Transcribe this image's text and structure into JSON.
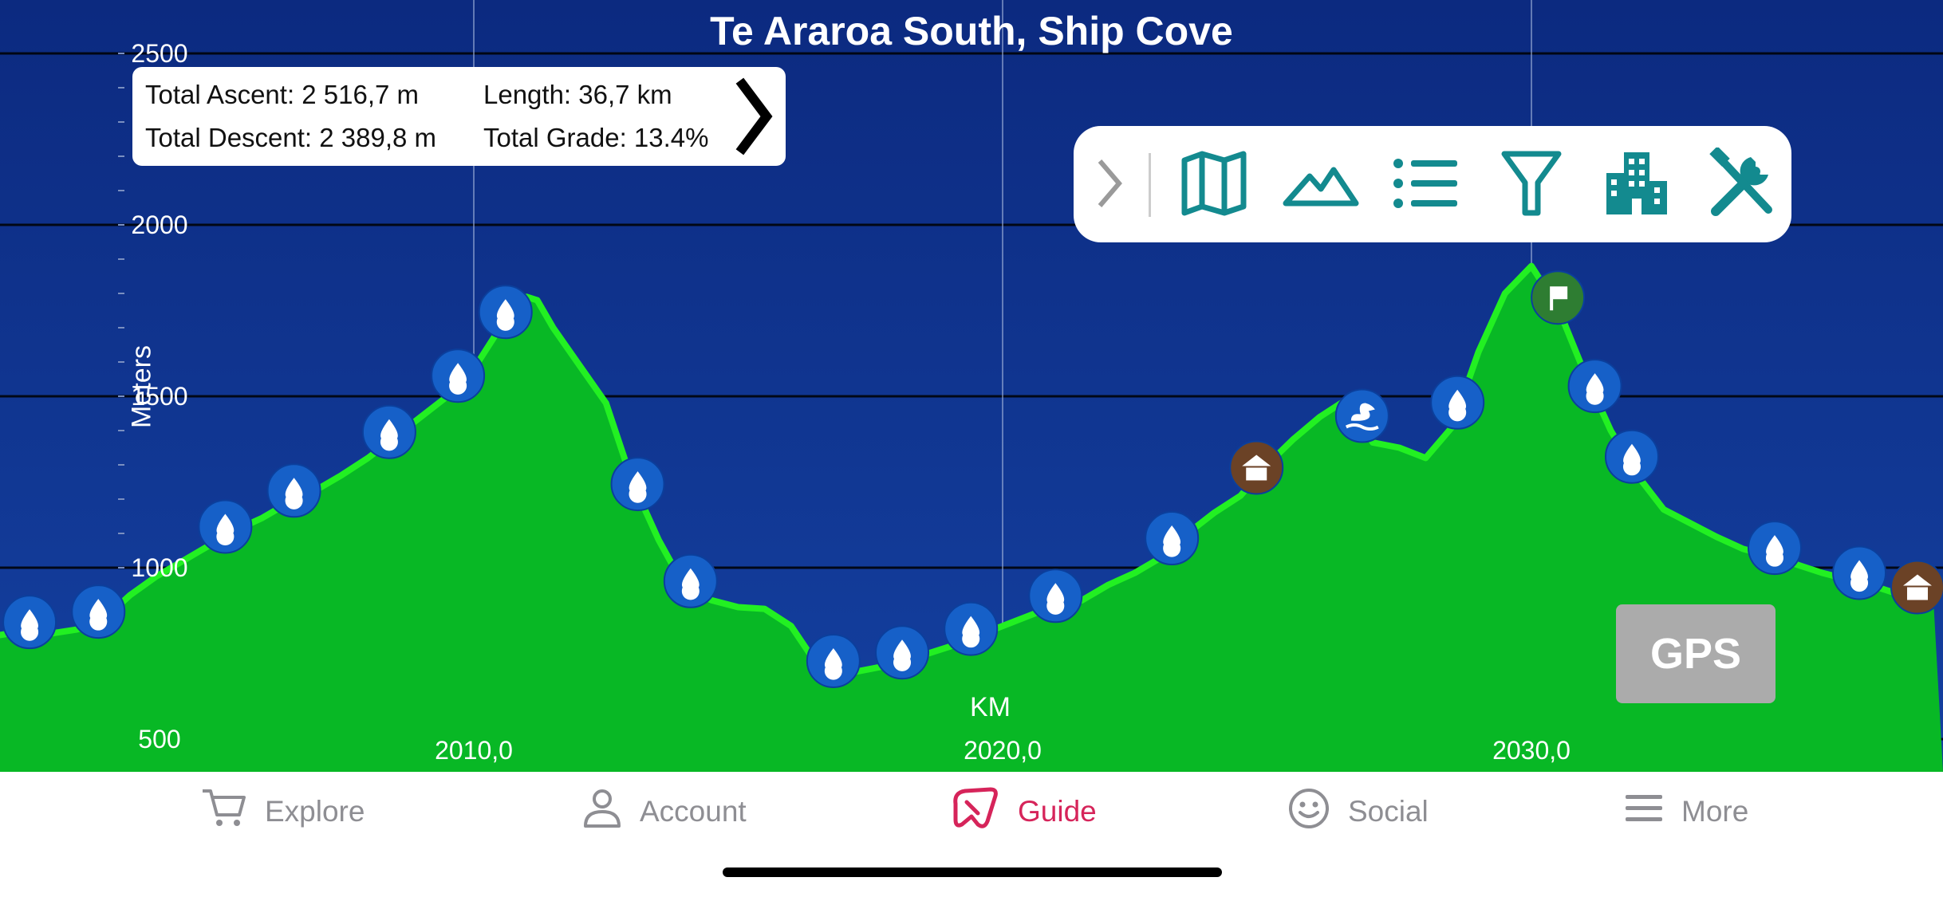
{
  "title": "Te Araroa South, Ship Cove",
  "stats": {
    "total_ascent": "Total Ascent: 2 516,7 m",
    "length": "Length: 36,7 km",
    "total_descent": "Total Descent: 2 389,8 m",
    "total_grade": "Total Grade: 13.4%"
  },
  "toolbar": {
    "icons": [
      "chevron-right-icon",
      "map-icon",
      "mountain-icon",
      "list-icon",
      "filter-icon",
      "building-icon",
      "tools-icon"
    ]
  },
  "gps_label": "GPS",
  "tabs": [
    {
      "label": "Explore",
      "icon": "cart-icon"
    },
    {
      "label": "Account",
      "icon": "person-icon"
    },
    {
      "label": "Guide",
      "icon": "guide-arrow-icon",
      "active": true
    },
    {
      "label": "Social",
      "icon": "smiley-icon"
    },
    {
      "label": "More",
      "icon": "menu-icon"
    }
  ],
  "colors": {
    "background": "#0f2d84",
    "fill": "#08b825",
    "line": "#22f022",
    "water_marker": "#1660c8",
    "hut_marker": "#6b4226",
    "flag_marker": "#2e7d32",
    "active_tab": "#d6245a"
  },
  "chart_data": {
    "type": "area",
    "title": "Te Araroa South, Ship Cove",
    "xlabel": "KM",
    "ylabel": "Meters",
    "xlim": [
      2000.9,
      2037.6
    ],
    "ylim": [
      450,
      2600
    ],
    "x_ticks": [
      "2010,0",
      "2020,0",
      "2030,0"
    ],
    "x_tick_values": [
      2010,
      2020,
      2030
    ],
    "y_ticks": [
      "500",
      "1000",
      "1500",
      "2000",
      "2500"
    ],
    "y_tick_values": [
      500,
      1000,
      1500,
      2000,
      2500
    ],
    "grid": true,
    "x": [
      2000.9,
      2001.5,
      2002.0,
      2002.5,
      2003.0,
      2003.5,
      2004.0,
      2004.5,
      2005.0,
      2005.5,
      2006.0,
      2006.5,
      2007.0,
      2007.5,
      2008.0,
      2008.5,
      2009.0,
      2009.5,
      2010.0,
      2010.5,
      2011.0,
      2011.2,
      2011.5,
      2012.0,
      2012.5,
      2013.0,
      2013.5,
      2014.0,
      2014.5,
      2015.0,
      2015.5,
      2016.0,
      2016.5,
      2017.0,
      2017.5,
      2018.0,
      2018.5,
      2019.0,
      2019.5,
      2020.0,
      2020.5,
      2021.0,
      2021.5,
      2022.0,
      2022.5,
      2023.0,
      2023.5,
      2024.0,
      2024.5,
      2025.0,
      2025.5,
      2026.0,
      2026.5,
      2027.0,
      2027.5,
      2028.0,
      2028.5,
      2029.0,
      2029.5,
      2030.0,
      2030.5,
      2031.0,
      2031.5,
      2032.0,
      2032.5,
      2033.0,
      2033.5,
      2034.0,
      2034.5,
      2035.0,
      2035.5,
      2036.0,
      2036.5,
      2037.0,
      2037.6
    ],
    "values": [
      800,
      815,
      808,
      820,
      850,
      920,
      975,
      1020,
      1065,
      1110,
      1145,
      1190,
      1225,
      1270,
      1320,
      1380,
      1440,
      1500,
      1580,
      1700,
      1790,
      1780,
      1700,
      1590,
      1480,
      1250,
      1080,
      940,
      905,
      885,
      880,
      830,
      715,
      690,
      705,
      720,
      745,
      770,
      800,
      830,
      860,
      890,
      905,
      950,
      985,
      1030,
      1100,
      1160,
      1210,
      1300,
      1375,
      1440,
      1490,
      1365,
      1350,
      1320,
      1410,
      1630,
      1800,
      1880,
      1760,
      1570,
      1400,
      1270,
      1170,
      1130,
      1090,
      1055,
      1035,
      1010,
      985,
      965,
      945,
      920,
      910
    ],
    "markers": [
      {
        "km": 2001.6,
        "type": "water"
      },
      {
        "km": 2002.9,
        "type": "water"
      },
      {
        "km": 2005.3,
        "type": "water"
      },
      {
        "km": 2006.6,
        "type": "water"
      },
      {
        "km": 2008.4,
        "type": "water"
      },
      {
        "km": 2009.7,
        "type": "water"
      },
      {
        "km": 2010.6,
        "type": "water"
      },
      {
        "km": 2013.1,
        "type": "water"
      },
      {
        "km": 2014.1,
        "type": "water"
      },
      {
        "km": 2016.8,
        "type": "water"
      },
      {
        "km": 2018.1,
        "type": "water"
      },
      {
        "km": 2019.4,
        "type": "water"
      },
      {
        "km": 2021.0,
        "type": "water"
      },
      {
        "km": 2023.2,
        "type": "water"
      },
      {
        "km": 2024.8,
        "type": "hut"
      },
      {
        "km": 2026.8,
        "type": "duck"
      },
      {
        "km": 2028.6,
        "type": "water"
      },
      {
        "km": 2030.5,
        "type": "flag"
      },
      {
        "km": 2031.2,
        "type": "water"
      },
      {
        "km": 2031.9,
        "type": "water"
      },
      {
        "km": 2034.6,
        "type": "water"
      },
      {
        "km": 2036.2,
        "type": "water"
      },
      {
        "km": 2037.3,
        "type": "hut"
      }
    ]
  }
}
